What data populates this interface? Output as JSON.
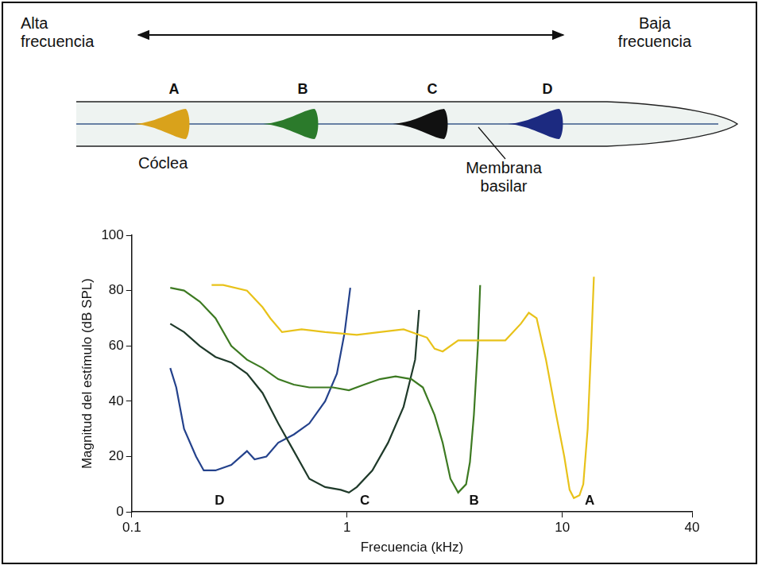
{
  "diagram": {
    "left_label": "Alta frecuencia",
    "right_label": "Baja frecuencia",
    "organ_label": "Cóclea",
    "membrane_label": "Membrana basilar",
    "regions": [
      {
        "label": "A",
        "color": "#d9a21b"
      },
      {
        "label": "B",
        "color": "#2b7a2b"
      },
      {
        "label": "C",
        "color": "#111111"
      },
      {
        "label": "D",
        "color": "#1c2a80"
      }
    ]
  },
  "chart_data": {
    "type": "line",
    "x_label": "Frecuencia (kHz)",
    "y_label": "Magnitud del estímulo (dB SPL)",
    "log": "x",
    "xlim": [
      0.1,
      40
    ],
    "xticks": [
      0.1,
      1,
      10,
      40
    ],
    "ylim": [
      0,
      100
    ],
    "yticks": [
      0,
      20,
      40,
      60,
      80,
      100
    ],
    "grid": false,
    "series": [
      {
        "name": "A",
        "color": "#e8c21a",
        "x": [
          0.235,
          0.266,
          0.343,
          0.405,
          0.44,
          0.499,
          0.615,
          0.791,
          1.11,
          1.42,
          1.83,
          2.35,
          2.55,
          2.78,
          3.28,
          4.22,
          5.43,
          6.41,
          6.98,
          7.59,
          8.39,
          9.36,
          10.2,
          10.8,
          11.3,
          12.0,
          12.5,
          13.1,
          13.6,
          14.0
        ],
        "values": [
          82,
          82,
          80,
          74,
          70,
          65,
          66,
          65,
          64,
          65,
          66,
          63,
          59,
          58,
          62,
          62,
          62,
          68,
          72,
          70,
          55,
          35,
          20,
          8,
          5,
          6,
          10,
          30,
          60,
          85
        ]
      },
      {
        "name": "B",
        "color": "#3d7a22",
        "x": [
          0.151,
          0.175,
          0.207,
          0.245,
          0.29,
          0.343,
          0.405,
          0.479,
          0.566,
          0.668,
          0.86,
          1.02,
          1.2,
          1.42,
          1.68,
          1.99,
          2.25,
          2.55,
          2.78,
          3.02,
          3.28,
          3.57,
          3.72,
          3.88,
          4.05,
          4.15
        ],
        "values": [
          81,
          80,
          76,
          70,
          60,
          55,
          52,
          48,
          46,
          45,
          45,
          44,
          46,
          48,
          49,
          48,
          45,
          35,
          25,
          12,
          7,
          10,
          18,
          35,
          60,
          82
        ]
      },
      {
        "name": "C",
        "color": "#1f3a2a",
        "x": [
          0.151,
          0.175,
          0.207,
          0.245,
          0.29,
          0.343,
          0.405,
          0.479,
          0.566,
          0.668,
          0.791,
          0.935,
          1.02,
          1.11,
          1.31,
          1.55,
          1.83,
          2.07,
          2.16
        ],
        "values": [
          68,
          65,
          60,
          56,
          54,
          50,
          43,
          32,
          22,
          12,
          9,
          8,
          7,
          9,
          15,
          25,
          38,
          55,
          73
        ]
      },
      {
        "name": "D",
        "color": "#24428c",
        "x": [
          0.151,
          0.161,
          0.175,
          0.199,
          0.216,
          0.245,
          0.29,
          0.343,
          0.372,
          0.422,
          0.479,
          0.566,
          0.668,
          0.791,
          0.897,
          0.975,
          1.035
        ],
        "values": [
          52,
          45,
          30,
          20,
          15,
          15,
          17,
          22,
          19,
          20,
          25,
          28,
          32,
          40,
          50,
          65,
          81
        ]
      }
    ]
  }
}
